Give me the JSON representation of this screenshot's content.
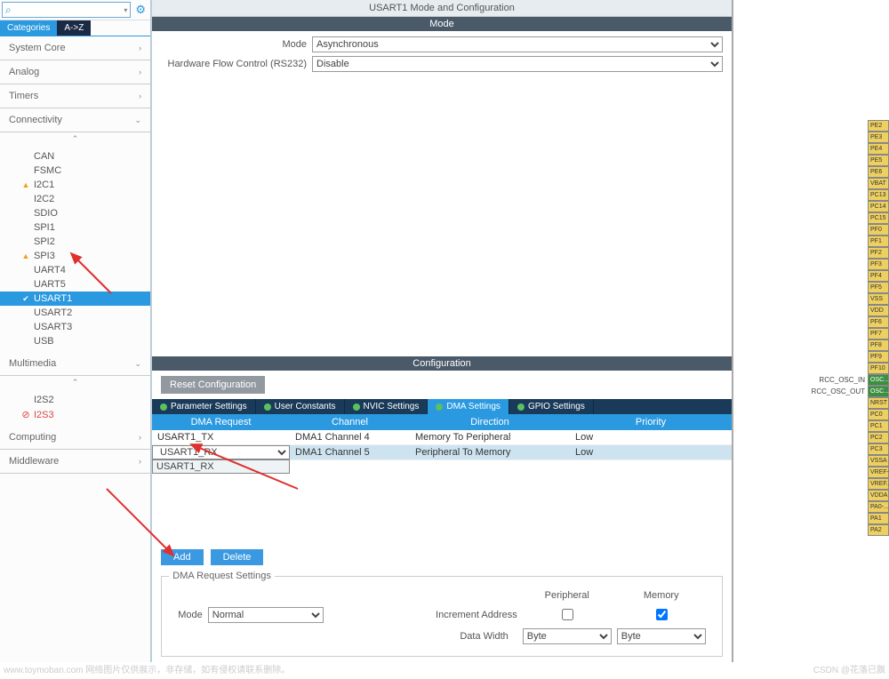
{
  "sidebar": {
    "search_placeholder": "",
    "tabs": {
      "categories": "Categories",
      "az": "A->Z"
    },
    "groups": [
      {
        "name": "System Core",
        "expanded": false
      },
      {
        "name": "Analog",
        "expanded": false
      },
      {
        "name": "Timers",
        "expanded": false
      },
      {
        "name": "Connectivity",
        "expanded": true,
        "items": [
          {
            "label": "CAN",
            "warn": false
          },
          {
            "label": "FSMC",
            "warn": false
          },
          {
            "label": "I2C1",
            "warn": true
          },
          {
            "label": "I2C2",
            "warn": false
          },
          {
            "label": "SDIO",
            "warn": false
          },
          {
            "label": "SPI1",
            "warn": false
          },
          {
            "label": "SPI2",
            "warn": false
          },
          {
            "label": "SPI3",
            "warn": true
          },
          {
            "label": "UART4",
            "warn": false
          },
          {
            "label": "UART5",
            "warn": false
          },
          {
            "label": "USART1",
            "warn": false,
            "checked": true,
            "selected": true
          },
          {
            "label": "USART2",
            "warn": false
          },
          {
            "label": "USART3",
            "warn": false
          },
          {
            "label": "USB",
            "warn": false
          }
        ]
      },
      {
        "name": "Multimedia",
        "expanded": true,
        "items": [
          {
            "label": "I2S2"
          },
          {
            "label": "I2S3",
            "disabled": true
          }
        ]
      },
      {
        "name": "Computing",
        "expanded": false
      },
      {
        "name": "Middleware",
        "expanded": false
      }
    ]
  },
  "main": {
    "title": "USART1 Mode and Configuration",
    "mode_hdr": "Mode",
    "mode": {
      "label": "Mode",
      "value": "Asynchronous"
    },
    "hfc": {
      "label": "Hardware Flow Control (RS232)",
      "value": "Disable"
    },
    "cfg_hdr": "Configuration",
    "reset_btn": "Reset Configuration",
    "cfg_tabs": [
      {
        "label": "Parameter Settings"
      },
      {
        "label": "User Constants"
      },
      {
        "label": "NVIC Settings"
      },
      {
        "label": "DMA Settings",
        "active": true
      },
      {
        "label": "GPIO Settings"
      }
    ],
    "dma_cols": {
      "req": "DMA Request",
      "ch": "Channel",
      "dir": "Direction",
      "pri": "Priority"
    },
    "dma_rows": [
      {
        "req": "USART1_TX",
        "ch": "DMA1 Channel 4",
        "dir": "Memory To Peripheral",
        "pri": "Low",
        "sel": false
      },
      {
        "req": "USART1_RX",
        "ch": "DMA1 Channel 5",
        "dir": "Peripheral To Memory",
        "pri": "Low",
        "sel": true
      }
    ],
    "dma_dropdown_opt": "USART1_RX",
    "add_btn": "Add",
    "del_btn": "Delete",
    "reqset": {
      "legend": "DMA Request Settings",
      "mode_label": "Mode",
      "mode_value": "Normal",
      "periph": "Peripheral",
      "mem": "Memory",
      "inc": "Increment Address",
      "dw": "Data Width",
      "dw_p": "Byte",
      "dw_m": "Byte"
    }
  },
  "pins": [
    {
      "l": "PE2"
    },
    {
      "l": "PE3"
    },
    {
      "l": "PE4"
    },
    {
      "l": "PE5"
    },
    {
      "l": "PE6"
    },
    {
      "l": "VBAT"
    },
    {
      "l": "PC13"
    },
    {
      "l": "PC14"
    },
    {
      "l": "PC15"
    },
    {
      "l": "PF0"
    },
    {
      "l": "PF1"
    },
    {
      "l": "PF2"
    },
    {
      "l": "PF3"
    },
    {
      "l": "PF4"
    },
    {
      "l": "PF5"
    },
    {
      "l": "VSS"
    },
    {
      "l": "VDD"
    },
    {
      "l": "PF6"
    },
    {
      "l": "PF7"
    },
    {
      "l": "PF8"
    },
    {
      "l": "PF9"
    },
    {
      "l": "PF10"
    },
    {
      "l": "OSC...",
      "osc": true,
      "ext": "RCC_OSC_IN"
    },
    {
      "l": "OSC...",
      "osc": true,
      "ext": "RCC_OSC_OUT"
    },
    {
      "l": "NRST"
    },
    {
      "l": "PC0"
    },
    {
      "l": "PC1"
    },
    {
      "l": "PC2"
    },
    {
      "l": "PC3"
    },
    {
      "l": "VSSA"
    },
    {
      "l": "VREF-"
    },
    {
      "l": "VREF..."
    },
    {
      "l": "VDDA"
    },
    {
      "l": "PA0-..."
    },
    {
      "l": "PA1"
    },
    {
      "l": "PA2"
    }
  ],
  "footer": {
    "left": "www.toymoban.com 网络图片仅供展示，非存储，如有侵权请联系删除。",
    "right": "CSDN @花落已飘"
  },
  "colors": {
    "accent": "#2a99e0",
    "dark_tab": "#1a2a45",
    "section_hdr": "#4a5a68",
    "warn": "#f0a020",
    "green": "#5ac060",
    "arrow": "#e03030"
  }
}
